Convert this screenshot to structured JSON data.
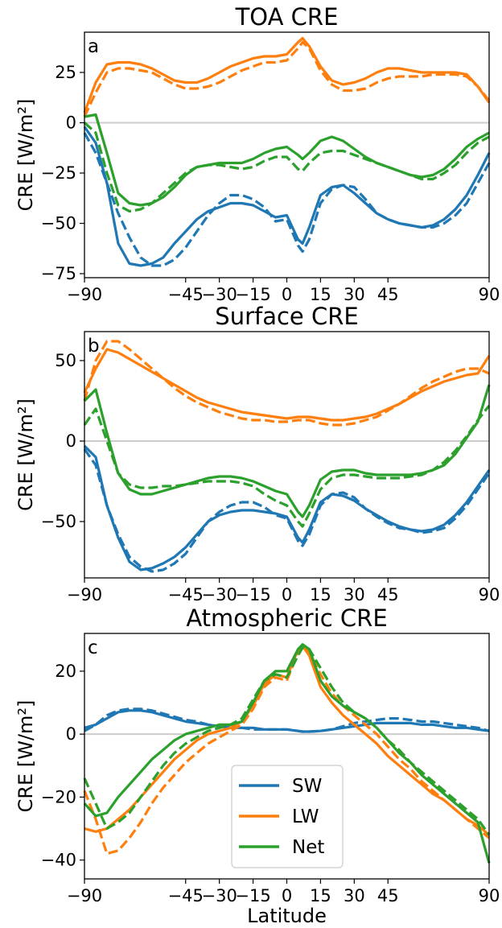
{
  "figure": {
    "xlabel": "Latitude",
    "xticks": [
      -90,
      -45,
      -30,
      -15,
      0,
      15,
      30,
      45,
      90
    ],
    "xlim": [
      -90,
      90
    ],
    "legend": {
      "placement": "lower-center of panel c",
      "entries": [
        "SW",
        "LW",
        "Net"
      ]
    },
    "colors": {
      "SW": "#1f77b4",
      "LW": "#ff7f0e",
      "Net": "#2ca02c",
      "zero_line": "#cccccc"
    }
  },
  "chart_data": [
    {
      "type": "line",
      "title": "TOA CRE",
      "panel_letter": "a",
      "ylabel": "CRE [W/m²]",
      "ylim": [
        -77,
        45
      ],
      "yticks": [
        -75,
        -50,
        -25,
        0,
        25
      ],
      "xlim": [
        -90,
        90
      ],
      "grid": false,
      "x": [
        -90,
        -85,
        -80,
        -75,
        -70,
        -65,
        -60,
        -55,
        -50,
        -45,
        -40,
        -35,
        -30,
        -25,
        -20,
        -15,
        -10,
        -5,
        0,
        5,
        7,
        10,
        15,
        20,
        25,
        30,
        35,
        40,
        45,
        50,
        55,
        60,
        65,
        70,
        75,
        80,
        85,
        90
      ],
      "series": [
        {
          "name": "SW",
          "style": "solid",
          "values": [
            -2,
            -10,
            -30,
            -60,
            -70,
            -71,
            -70,
            -67,
            -60,
            -54,
            -48,
            -44,
            -42,
            -40,
            -40,
            -41,
            -44,
            -47,
            -46,
            -58,
            -60,
            -52,
            -36,
            -32,
            -31,
            -35,
            -40,
            -45,
            -48,
            -50,
            -51,
            -52,
            -51,
            -48,
            -43,
            -36,
            -26,
            -15
          ]
        },
        {
          "name": "SW",
          "style": "dashed",
          "values": [
            -5,
            -15,
            -30,
            -45,
            -57,
            -67,
            -71,
            -71,
            -68,
            -62,
            -54,
            -46,
            -40,
            -36,
            -36,
            -38,
            -42,
            -49,
            -48,
            -61,
            -64,
            -58,
            -40,
            -33,
            -31,
            -32,
            -38,
            -45,
            -48,
            -50,
            -51,
            -52,
            -52,
            -50,
            -46,
            -40,
            -30,
            -20
          ]
        },
        {
          "name": "LW",
          "style": "solid",
          "values": [
            5,
            20,
            29,
            30,
            30,
            29,
            27,
            24,
            21,
            20,
            20,
            22,
            25,
            28,
            30,
            32,
            33,
            33,
            34,
            40,
            42,
            38,
            28,
            21,
            19,
            20,
            22,
            25,
            27,
            27,
            26,
            25,
            25,
            25,
            25,
            24,
            18,
            10
          ]
        },
        {
          "name": "LW",
          "style": "dashed",
          "values": [
            3,
            15,
            25,
            27,
            27,
            26,
            25,
            22,
            19,
            17,
            17,
            18,
            20,
            23,
            26,
            28,
            30,
            30,
            31,
            37,
            40,
            37,
            26,
            19,
            16,
            16,
            17,
            20,
            22,
            23,
            23,
            23,
            24,
            24,
            24,
            23,
            18,
            11
          ]
        },
        {
          "name": "Net",
          "style": "solid",
          "values": [
            3,
            4,
            -15,
            -35,
            -40,
            -41,
            -40,
            -37,
            -32,
            -26,
            -22,
            -21,
            -20,
            -20,
            -20,
            -18,
            -15,
            -13,
            -12,
            -16,
            -18,
            -15,
            -9,
            -7,
            -9,
            -13,
            -17,
            -20,
            -22,
            -24,
            -26,
            -27,
            -26,
            -23,
            -18,
            -12,
            -8,
            -5
          ]
        },
        {
          "name": "Net",
          "style": "dashed",
          "values": [
            0,
            -5,
            -25,
            -41,
            -44,
            -43,
            -40,
            -35,
            -30,
            -25,
            -22,
            -21,
            -21,
            -22,
            -23,
            -22,
            -19,
            -17,
            -17,
            -23,
            -24,
            -20,
            -15,
            -14,
            -14,
            -16,
            -18,
            -20,
            -22,
            -24,
            -26,
            -28,
            -28,
            -25,
            -21,
            -15,
            -10,
            -7
          ]
        }
      ]
    },
    {
      "type": "line",
      "title": "Surface CRE",
      "panel_letter": "b",
      "ylabel": "CRE [W/m²]",
      "ylim": [
        -85,
        68
      ],
      "yticks": [
        -50,
        0,
        50
      ],
      "xlim": [
        -90,
        90
      ],
      "grid": false,
      "x": [
        -90,
        -85,
        -80,
        -75,
        -70,
        -65,
        -60,
        -55,
        -50,
        -45,
        -40,
        -35,
        -30,
        -25,
        -20,
        -15,
        -10,
        -5,
        0,
        5,
        7,
        10,
        15,
        20,
        25,
        30,
        35,
        40,
        45,
        50,
        55,
        60,
        65,
        70,
        75,
        80,
        85,
        90
      ],
      "series": [
        {
          "name": "SW",
          "style": "solid",
          "values": [
            -3,
            -10,
            -40,
            -60,
            -75,
            -80,
            -79,
            -76,
            -72,
            -66,
            -58,
            -50,
            -46,
            -44,
            -43,
            -43,
            -44,
            -45,
            -47,
            -60,
            -63,
            -55,
            -38,
            -33,
            -34,
            -37,
            -42,
            -46,
            -50,
            -53,
            -55,
            -56,
            -55,
            -52,
            -46,
            -38,
            -28,
            -18
          ]
        },
        {
          "name": "SW",
          "style": "dashed",
          "values": [
            -5,
            -15,
            -40,
            -58,
            -72,
            -78,
            -81,
            -80,
            -76,
            -70,
            -60,
            -50,
            -44,
            -40,
            -38,
            -38,
            -41,
            -46,
            -48,
            -62,
            -65,
            -58,
            -40,
            -33,
            -32,
            -35,
            -42,
            -47,
            -51,
            -54,
            -55,
            -57,
            -56,
            -54,
            -48,
            -40,
            -30,
            -20
          ]
        },
        {
          "name": "LW",
          "style": "solid",
          "values": [
            30,
            45,
            57,
            55,
            51,
            47,
            43,
            39,
            35,
            31,
            27,
            24,
            22,
            20,
            18,
            17,
            16,
            15,
            14,
            15,
            15,
            15,
            14,
            13,
            13,
            14,
            15,
            17,
            20,
            23,
            27,
            31,
            34,
            37,
            39,
            41,
            42,
            53
          ]
        },
        {
          "name": "LW",
          "style": "dashed",
          "values": [
            25,
            50,
            62,
            62,
            57,
            51,
            45,
            39,
            33,
            28,
            24,
            21,
            18,
            16,
            14,
            13,
            13,
            12,
            12,
            13,
            13,
            13,
            11,
            10,
            10,
            11,
            13,
            15,
            19,
            23,
            28,
            33,
            37,
            40,
            43,
            45,
            45,
            42
          ]
        },
        {
          "name": "Net",
          "style": "solid",
          "values": [
            25,
            32,
            5,
            -20,
            -30,
            -33,
            -33,
            -31,
            -29,
            -27,
            -25,
            -23,
            -22,
            -22,
            -23,
            -25,
            -28,
            -31,
            -33,
            -44,
            -47,
            -40,
            -24,
            -19,
            -18,
            -18,
            -20,
            -21,
            -21,
            -21,
            -21,
            -20,
            -18,
            -15,
            -8,
            2,
            12,
            35
          ]
        },
        {
          "name": "Net",
          "style": "dashed",
          "values": [
            10,
            20,
            0,
            -20,
            -27,
            -29,
            -29,
            -28,
            -28,
            -27,
            -26,
            -25,
            -25,
            -25,
            -26,
            -28,
            -33,
            -37,
            -40,
            -50,
            -53,
            -45,
            -30,
            -23,
            -21,
            -21,
            -22,
            -23,
            -23,
            -23,
            -22,
            -21,
            -18,
            -13,
            -6,
            3,
            13,
            22
          ]
        }
      ]
    },
    {
      "type": "line",
      "title": "Atmospheric CRE",
      "panel_letter": "c",
      "ylabel": "CRE [W/m²]",
      "ylim": [
        -46,
        32
      ],
      "yticks": [
        -40,
        -20,
        0,
        20
      ],
      "xlim": [
        -90,
        90
      ],
      "grid": false,
      "x": [
        -90,
        -85,
        -80,
        -75,
        -70,
        -65,
        -60,
        -55,
        -50,
        -45,
        -40,
        -35,
        -30,
        -25,
        -20,
        -15,
        -10,
        -5,
        0,
        5,
        7,
        10,
        15,
        20,
        25,
        30,
        35,
        40,
        45,
        50,
        55,
        60,
        65,
        70,
        75,
        80,
        85,
        90
      ],
      "series": [
        {
          "name": "SW",
          "style": "solid",
          "values": [
            2,
            3,
            5,
            7,
            7.5,
            7.5,
            7,
            6,
            5,
            4,
            3.5,
            3,
            2.5,
            2,
            2,
            2,
            1.5,
            1.5,
            1.5,
            1,
            0.8,
            0.8,
            1,
            1.5,
            2,
            2.5,
            3,
            3.5,
            3.5,
            3.5,
            3.5,
            3,
            3,
            2.5,
            2,
            2,
            1.5,
            1
          ]
        },
        {
          "name": "SW",
          "style": "dashed",
          "values": [
            1,
            3,
            6,
            7.5,
            8,
            8,
            7.5,
            6.5,
            5.5,
            4.5,
            4,
            3,
            2.5,
            2,
            2,
            1.5,
            1.5,
            1.5,
            1.5,
            1,
            0.8,
            0.8,
            1,
            1.5,
            2.5,
            3.5,
            4,
            4.5,
            5,
            5,
            4.5,
            4,
            4,
            3.5,
            3,
            2.5,
            2,
            1
          ]
        },
        {
          "name": "LW",
          "style": "solid",
          "values": [
            -30,
            -31,
            -30,
            -27,
            -24,
            -20,
            -16,
            -12,
            -8,
            -5,
            -2,
            0,
            1,
            2,
            4,
            9,
            16,
            19,
            18,
            27,
            28,
            25,
            15,
            10,
            6,
            3,
            0,
            -3,
            -7,
            -10,
            -13,
            -16,
            -19,
            -21,
            -24,
            -27,
            -29,
            -32
          ]
        },
        {
          "name": "LW",
          "style": "dashed",
          "values": [
            -18,
            -27,
            -38,
            -37,
            -33,
            -28,
            -22,
            -17,
            -13,
            -9,
            -6,
            -3,
            -1,
            1,
            3,
            8,
            15,
            18,
            17,
            26,
            28,
            26,
            19,
            13,
            9,
            6,
            3,
            0,
            -4,
            -8,
            -11,
            -15,
            -18,
            -21,
            -24,
            -27,
            -30,
            -33
          ]
        },
        {
          "name": "Net",
          "style": "solid",
          "values": [
            -22,
            -26,
            -25,
            -20,
            -16,
            -12,
            -8,
            -5,
            -2,
            0,
            1,
            2,
            3,
            3,
            4,
            10,
            17,
            20,
            20,
            27,
            28.5,
            27,
            17,
            12,
            9,
            7,
            5,
            2,
            -2,
            -6,
            -9,
            -13,
            -16,
            -19,
            -22,
            -25,
            -28,
            -41
          ]
        },
        {
          "name": "Net",
          "style": "dashed",
          "values": [
            -14,
            -22,
            -30,
            -28,
            -25,
            -20,
            -15,
            -10,
            -6,
            -3,
            -1,
            1,
            2,
            3,
            5,
            11,
            17,
            19,
            18,
            25,
            27.5,
            27,
            21,
            15,
            10,
            7,
            5,
            2,
            -2,
            -5,
            -9,
            -12,
            -15,
            -18,
            -21,
            -24,
            -27,
            -32
          ]
        }
      ]
    }
  ]
}
